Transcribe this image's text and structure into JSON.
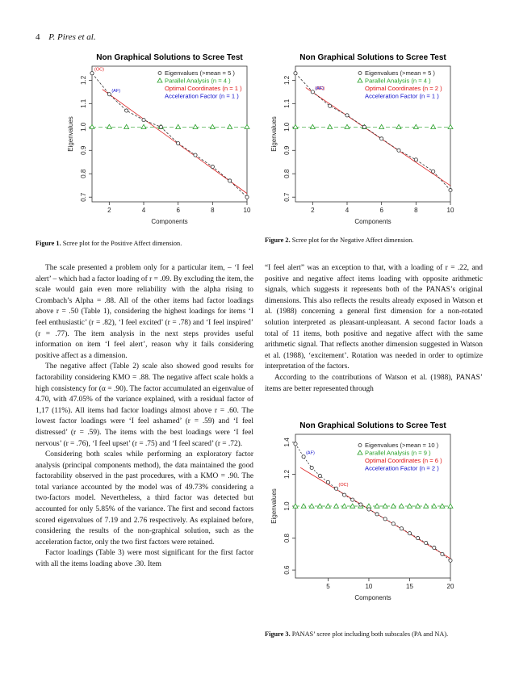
{
  "header": {
    "page_number": "4",
    "authors": "P. Pires et al."
  },
  "chart_data": [
    {
      "type": "scatter",
      "title": "Non Graphical Solutions to Scree Test",
      "xlabel": "Components",
      "ylabel": "Eigenvalues",
      "xlim": [
        1,
        10
      ],
      "ylim": [
        0.68,
        1.26
      ],
      "xticks": [
        "2",
        "4",
        "6",
        "8",
        "10"
      ],
      "yticks": [
        "0.7",
        "0.8",
        "0.9",
        "1.0",
        "1.1",
        "1.2"
      ],
      "ytick_values": [
        0.7,
        0.8,
        0.9,
        1.0,
        1.1,
        1.2
      ],
      "xtick_values": [
        2,
        4,
        6,
        8,
        10
      ],
      "x": [
        1,
        2,
        3,
        4,
        5,
        6,
        7,
        8,
        9,
        10
      ],
      "eigenvalues": [
        1.23,
        1.14,
        1.07,
        1.03,
        1.0,
        0.93,
        0.88,
        0.83,
        0.77,
        0.7
      ],
      "parallel_analysis": [
        1.0,
        1.0,
        1.0,
        1.0,
        1.0,
        1.0,
        1.0,
        1.0,
        1.0,
        1.0
      ],
      "legend": [
        "Eigenvalues (>mean = 5 )",
        "Parallel Analysis (n = 4 )",
        "Optimal Coordinates (n = 1 )",
        "Acceleration Factor (n = 1 )"
      ],
      "annotations": [
        "(OC)",
        "(AF)"
      ],
      "colors": {
        "eigen": "#555555",
        "parallel": "#2aa02a",
        "oc": "#dd1111",
        "af": "#1111cc",
        "regression": "#dd2222"
      },
      "grid": false,
      "legend_position": "top-right"
    },
    {
      "type": "scatter",
      "title": "Non Graphical Solutions to Scree Test",
      "xlabel": "Components",
      "ylabel": "Eigenvalues",
      "xlim": [
        1,
        10
      ],
      "ylim": [
        0.68,
        1.26
      ],
      "xticks": [
        "2",
        "4",
        "6",
        "8",
        "10"
      ],
      "yticks": [
        "0.7",
        "0.8",
        "0.9",
        "1.0",
        "1.1",
        "1.2"
      ],
      "ytick_values": [
        0.7,
        0.8,
        0.9,
        1.0,
        1.1,
        1.2
      ],
      "xtick_values": [
        2,
        4,
        6,
        8,
        10
      ],
      "x": [
        1,
        2,
        3,
        4,
        5,
        6,
        7,
        8,
        9,
        10
      ],
      "eigenvalues": [
        1.23,
        1.15,
        1.09,
        1.05,
        1.0,
        0.95,
        0.9,
        0.86,
        0.81,
        0.73
      ],
      "parallel_analysis": [
        1.0,
        1.0,
        1.0,
        1.0,
        1.0,
        1.0,
        1.0,
        1.0,
        1.0,
        1.0
      ],
      "legend": [
        "Eigenvalues (>mean = 5 )",
        "Parallel Analysis (n = 4 )",
        "Optimal Coordinates (n = 2 )",
        "Acceleration Factor (n = 1 )"
      ],
      "annotations": [
        "(OC)",
        "(AF)"
      ],
      "colors": {
        "eigen": "#555555",
        "parallel": "#2aa02a",
        "oc": "#dd1111",
        "af": "#1111cc",
        "regression": "#dd2222"
      },
      "grid": false,
      "legend_position": "top-right"
    },
    {
      "type": "scatter",
      "title": "Non Graphical Solutions to Scree Test",
      "xlabel": "Components",
      "ylabel": "Eigenvalues",
      "xlim": [
        1,
        20
      ],
      "ylim": [
        0.55,
        1.45
      ],
      "xticks": [
        "5",
        "10",
        "15",
        "20"
      ],
      "yticks": [
        "0.6",
        "0.8",
        "1.0",
        "1.2",
        "1.4"
      ],
      "ytick_values": [
        0.6,
        0.8,
        1.0,
        1.2,
        1.4
      ],
      "xtick_values": [
        5,
        10,
        15,
        20
      ],
      "x": [
        1,
        2,
        3,
        4,
        5,
        6,
        7,
        8,
        9,
        10,
        11,
        12,
        13,
        14,
        15,
        16,
        17,
        18,
        19,
        20
      ],
      "eigenvalues": [
        1.39,
        1.31,
        1.24,
        1.19,
        1.15,
        1.11,
        1.07,
        1.04,
        1.01,
        0.98,
        0.95,
        0.92,
        0.89,
        0.86,
        0.83,
        0.8,
        0.77,
        0.74,
        0.7,
        0.66
      ],
      "parallel_analysis": [
        1.0,
        1.0,
        1.0,
        1.0,
        1.0,
        1.0,
        1.0,
        1.0,
        1.0,
        1.0,
        1.0,
        1.0,
        1.0,
        1.0,
        1.0,
        1.0,
        1.0,
        1.0,
        1.0,
        1.0
      ],
      "legend": [
        "Eigenvalues (>mean = 10 )",
        "Parallel Analysis (n = 9 )",
        "Optimal Coordinates (n = 6 )",
        "Acceleration Factor (n = 2 )"
      ],
      "annotations": [
        "(OC)",
        "(AF)"
      ],
      "colors": {
        "eigen": "#555555",
        "parallel": "#2aa02a",
        "oc": "#dd1111",
        "af": "#1111cc",
        "regression": "#dd2222"
      },
      "grid": false,
      "legend_position": "top-right"
    }
  ],
  "captions": {
    "fig1_label": "Figure 1.",
    "fig1_text": " Scree plot for the Positive Affect dimension.",
    "fig2_label": "Figure 2.",
    "fig2_text": " Scree plot for the Negative Affect dimension.",
    "fig3_label": "Figure 3.",
    "fig3_text": " PANAS’ scree plot including both subscales (PA and NA)."
  },
  "left_column": {
    "p1": "The scale presented a problem only for a particular item, – ‘I feel alert’ – which had a factor loading of r = .09. By excluding the item, the scale would gain even more reliability with the alpha rising to Crombach’s Alpha = .88. All of the other items had factor loadings above r = .50 (Table 1), considering the highest loadings for items ‘I feel enthusiastic’ (r = .82), ‘I feel excited’ (r = .78) and ‘I feel inspired’ (r = .77). The item analysis in the next steps provides useful information on item ‘I feel alert’, reason why it fails considering positive affect as a dimension.",
    "p2": "The negative affect (Table 2) scale also showed good results for factorability considering KMO = .88. The negative affect scale holds a high consistency for (α = .90). The factor accumulated an eigenvalue of 4.70, with 47.05% of the variance explained, with a residual factor of 1,17 (11%). All items had factor loadings almost above r = .60. The lowest factor loadings were ‘I feel ashamed’ (r = .59) and ‘I feel distressed’ (r = .59). The items with the best loadings were ‘I feel nervous’ (r = .76), ‘I feel upset’ (r = .75) and ‘I feel scared’ (r = .72).",
    "p3": "Considering both scales while performing an exploratory factor analysis (principal components method), the data maintained the good factorability observed in the past procedures, with a KMO = .90. The total variance accounted by the model was of 49.73% considering a two-factors model. Nevertheless, a third factor was detected but accounted for only 5.85% of the variance. The first and second factors scored eigenvalues of 7.19 and 2.76 respectively. As explained before, considering the results of the non-graphical solution, such as the acceleration factor, only the two first factors were retained.",
    "p4": "Factor loadings (Table 3) were most significant for the first factor with all the items loading above .30. Item"
  },
  "right_column": {
    "p1": "“I feel alert” was an exception to that, with a loading of r = .22, and positive and negative affect items loading with opposite arithmetic signals, which suggests it represents both of the PANAS’s original dimensions. This also reflects the results already exposed in Watson et al. (1988) concerning a general first dimension for a non-rotated solution interpreted as pleasant-unpleasant. A second factor loads a total of 11 items, both positive and negative affect with the same arithmetic signal. That reflects another dimension suggested in Watson et al. (1988), ‘excitement’. Rotation was needed in order to optimize interpretation of the factors.",
    "p2": "According to the contributions of Watson et al. (1988), PANAS’ items are better represented through"
  }
}
